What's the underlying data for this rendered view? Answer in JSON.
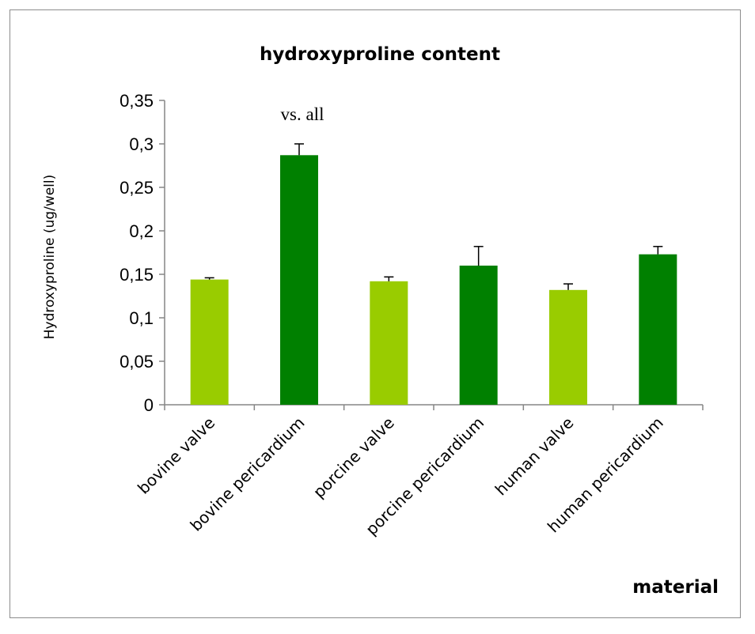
{
  "chart_data": {
    "type": "bar",
    "title": "hydroxyproline content",
    "xlabel": "material",
    "ylabel": "Hydroxyproline (ug/well)",
    "categories": [
      "bovine valve",
      "bovine pericardium",
      "porcine valve",
      "porcine pericardium",
      "human valve",
      "human pericardium"
    ],
    "values": [
      0.144,
      0.287,
      0.142,
      0.16,
      0.132,
      0.173
    ],
    "errors": [
      0.002,
      0.013,
      0.005,
      0.022,
      0.007,
      0.009
    ],
    "bar_colors": [
      "#99cc00",
      "#008000",
      "#99cc00",
      "#008000",
      "#99cc00",
      "#008000"
    ],
    "ylim": [
      0,
      0.35
    ],
    "yticks": [
      0,
      0.05,
      0.1,
      0.15,
      0.2,
      0.25,
      0.3,
      0.35
    ],
    "ytick_labels": [
      "0",
      "0,05",
      "0,1",
      "0,15",
      "0,2",
      "0,25",
      "0,3",
      "0,35"
    ],
    "grid": false,
    "annotations": [
      {
        "category_index": 1,
        "text": "vs. all"
      }
    ]
  }
}
